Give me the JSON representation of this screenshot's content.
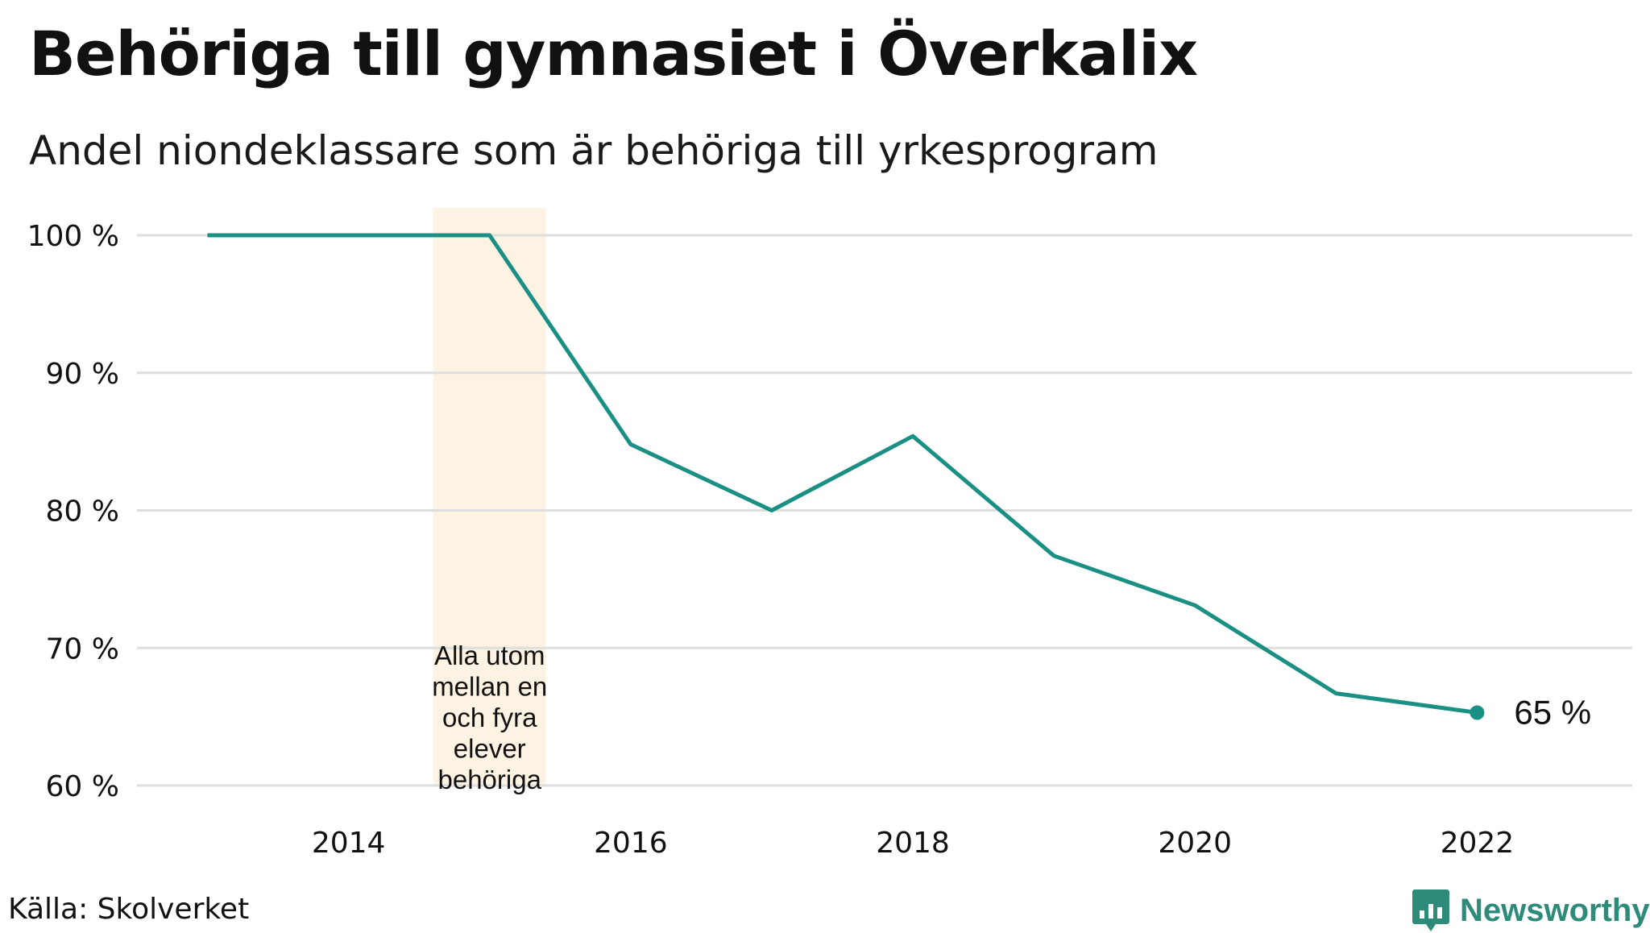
{
  "title": "Behöriga till gymnasiet i Överkalix",
  "subtitle": "Andel niondeklassare som är behöriga till yrkesprogram",
  "source": "Källa: Skolverket",
  "brand": "Newsworthy",
  "colors": {
    "line": "#1a8f84",
    "highlight": "#fdf3e3",
    "grid": "#dedede",
    "brand": "#2e8b7a"
  },
  "chart_data": {
    "type": "line",
    "x": [
      2013,
      2014,
      2015,
      2016,
      2017,
      2018,
      2019,
      2020,
      2021,
      2022
    ],
    "values": [
      100,
      100,
      100,
      84.8,
      80.0,
      85.4,
      76.7,
      73.1,
      66.7,
      65.3
    ],
    "xlim": [
      2012.5,
      2023.1
    ],
    "ylim": [
      60,
      100
    ],
    "y_ticks": [
      100,
      90,
      80,
      70,
      60
    ],
    "y_tick_labels": [
      "100 %",
      "90 %",
      "80 %",
      "70 %",
      "60 %"
    ],
    "x_ticks": [
      2014,
      2016,
      2018,
      2020,
      2022
    ],
    "x_tick_labels": [
      "2014",
      "2016",
      "2018",
      "2020",
      "2022"
    ],
    "grid": "horizontal",
    "end_label": "65  %",
    "highlight_band": {
      "x_start": 2014.6,
      "x_end": 2015.4,
      "annotation_lines": [
        "Alla utom",
        "mellan en",
        "och fyra",
        "elever",
        "behöriga"
      ]
    }
  }
}
